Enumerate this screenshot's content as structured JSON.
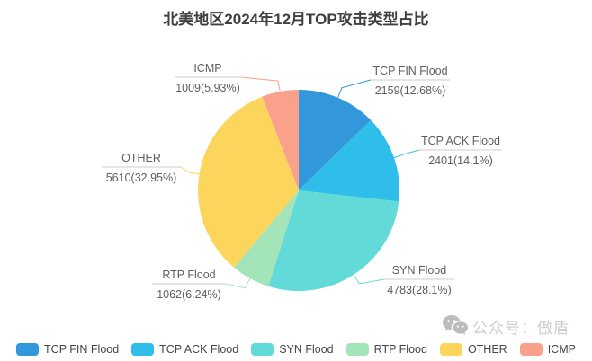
{
  "title": "北美地区2024年12月TOP攻击类型占比",
  "watermark": {
    "text": "公众号：傲盾",
    "icon": "wechat-icon"
  },
  "chart_data": {
    "type": "pie",
    "title": "北美地区2024年12月TOP攻击类型占比",
    "direction": "clockwise",
    "start_angle": "top",
    "legend_position": "bottom",
    "series": [
      {
        "name": "TCP FIN Flood",
        "value": 2159,
        "percent": 12.68,
        "label": "2159(12.68%)",
        "color": "#3398db"
      },
      {
        "name": "TCP ACK Flood",
        "value": 2401,
        "percent": 14.1,
        "label": "2401(14.1%)",
        "color": "#2fbde9"
      },
      {
        "name": "SYN Flood",
        "value": 4783,
        "percent": 28.1,
        "label": "4783(28.1%)",
        "color": "#62dbd8"
      },
      {
        "name": "RTP Flood",
        "value": 1062,
        "percent": 6.24,
        "label": "1062(6.24%)",
        "color": "#a3e4b8"
      },
      {
        "name": "OTHER",
        "value": 5610,
        "percent": 32.95,
        "label": "5610(32.95%)",
        "color": "#fcd65c"
      },
      {
        "name": "ICMP",
        "value": 1009,
        "percent": 5.93,
        "label": "1009(5.93%)",
        "color": "#f9a18b"
      }
    ]
  }
}
